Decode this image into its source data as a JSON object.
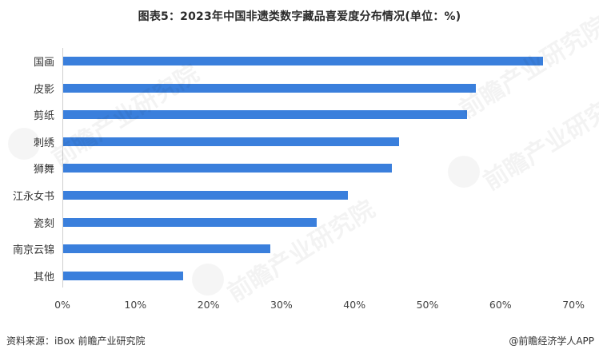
{
  "chart_data": {
    "type": "bar",
    "orientation": "horizontal",
    "title": "图表5：2023年中国非遗类数字藏品喜爱度分布情况(单位：%)",
    "categories": [
      "国画",
      "皮影",
      "剪纸",
      "刺绣",
      "狮舞",
      "江永女书",
      "瓷刻",
      "南京云锦",
      "其他"
    ],
    "values": [
      65.7,
      56.5,
      55.3,
      46.0,
      45.0,
      39.0,
      34.7,
      28.4,
      16.4
    ],
    "xlabel": "",
    "ylabel": "",
    "xlim": [
      0,
      70
    ],
    "xticks": [
      "0%",
      "10%",
      "20%",
      "30%",
      "40%",
      "50%",
      "60%",
      "70%"
    ],
    "grid": false,
    "legend": "none",
    "bar_color": "#3a7fdc"
  },
  "footer": {
    "source": "资料来源：iBox 前瞻产业研究院",
    "credit": "@前瞻经济学人APP"
  },
  "watermark": {
    "text": "前瞻产业研究院"
  }
}
